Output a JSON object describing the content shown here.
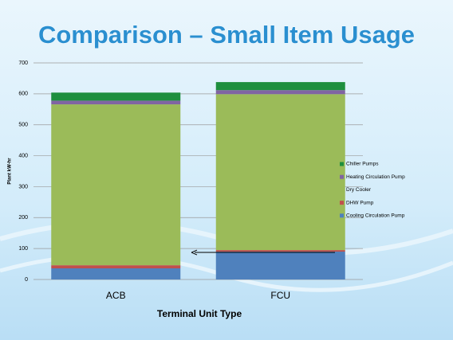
{
  "chart_data": {
    "type": "stacked_bar",
    "title": "Comparison – Small Item Usage",
    "y_label": "Plant kW-hr",
    "x_label": "Terminal Unit Type",
    "categories": [
      "ACB",
      "FCU"
    ],
    "series": [
      {
        "name": "Cooling Circulation Pump",
        "color": "#4f81bd",
        "values": [
          36,
          90
        ]
      },
      {
        "name": "DHW Pump",
        "color": "#c0504d",
        "values": [
          10,
          5
        ]
      },
      {
        "name": "Dry Cooler",
        "color": "#9bbb59",
        "values": [
          520,
          504
        ]
      },
      {
        "name": "Heating Circulation Pump",
        "color": "#8064a2",
        "values": [
          12,
          13
        ]
      },
      {
        "name": "Chiller Pumps",
        "color": "#1e8f3e",
        "values": [
          26,
          26
        ]
      }
    ],
    "ylim": [
      0,
      700
    ],
    "yticks": [
      0,
      100,
      200,
      300,
      400,
      500,
      600,
      700
    ],
    "grid": true
  }
}
